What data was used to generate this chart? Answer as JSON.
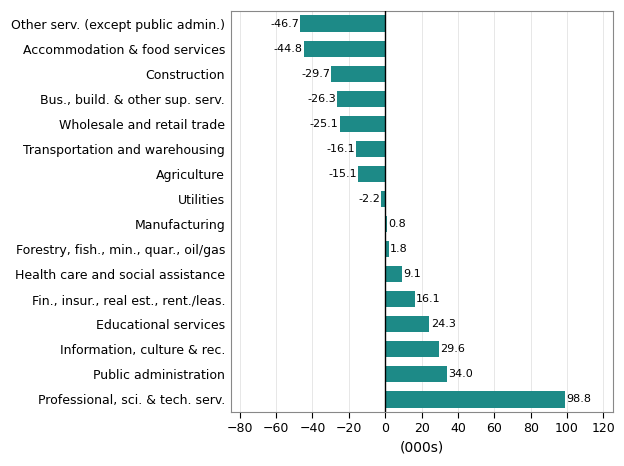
{
  "categories": [
    "Other serv. (except public admin.)",
    "Accommodation & food services",
    "Construction",
    "Bus., build. & other sup. serv.",
    "Wholesale and retail trade",
    "Transportation and warehousing",
    "Agriculture",
    "Utilities",
    "Manufacturing",
    "Forestry, fish., min., quar., oil/gas",
    "Health care and social assistance",
    "Fin., insur., real est., rent./leas.",
    "Educational services",
    "Information, culture & rec.",
    "Public administration",
    "Professional, sci. & tech. serv."
  ],
  "values": [
    -46.7,
    -44.8,
    -29.7,
    -26.3,
    -25.1,
    -16.1,
    -15.1,
    -2.2,
    0.8,
    1.8,
    9.1,
    16.1,
    24.3,
    29.6,
    34.0,
    98.8
  ],
  "bar_color": "#1d8a87",
  "xlabel": "(000s)",
  "xlim": [
    -85,
    125
  ],
  "xticks": [
    -80,
    -60,
    -40,
    -20,
    0,
    20,
    40,
    60,
    80,
    100,
    120
  ],
  "background_color": "#ffffff",
  "plot_bg_color": "#ffffff",
  "label_fontsize": 9,
  "xlabel_fontsize": 10,
  "bar_height": 0.65
}
